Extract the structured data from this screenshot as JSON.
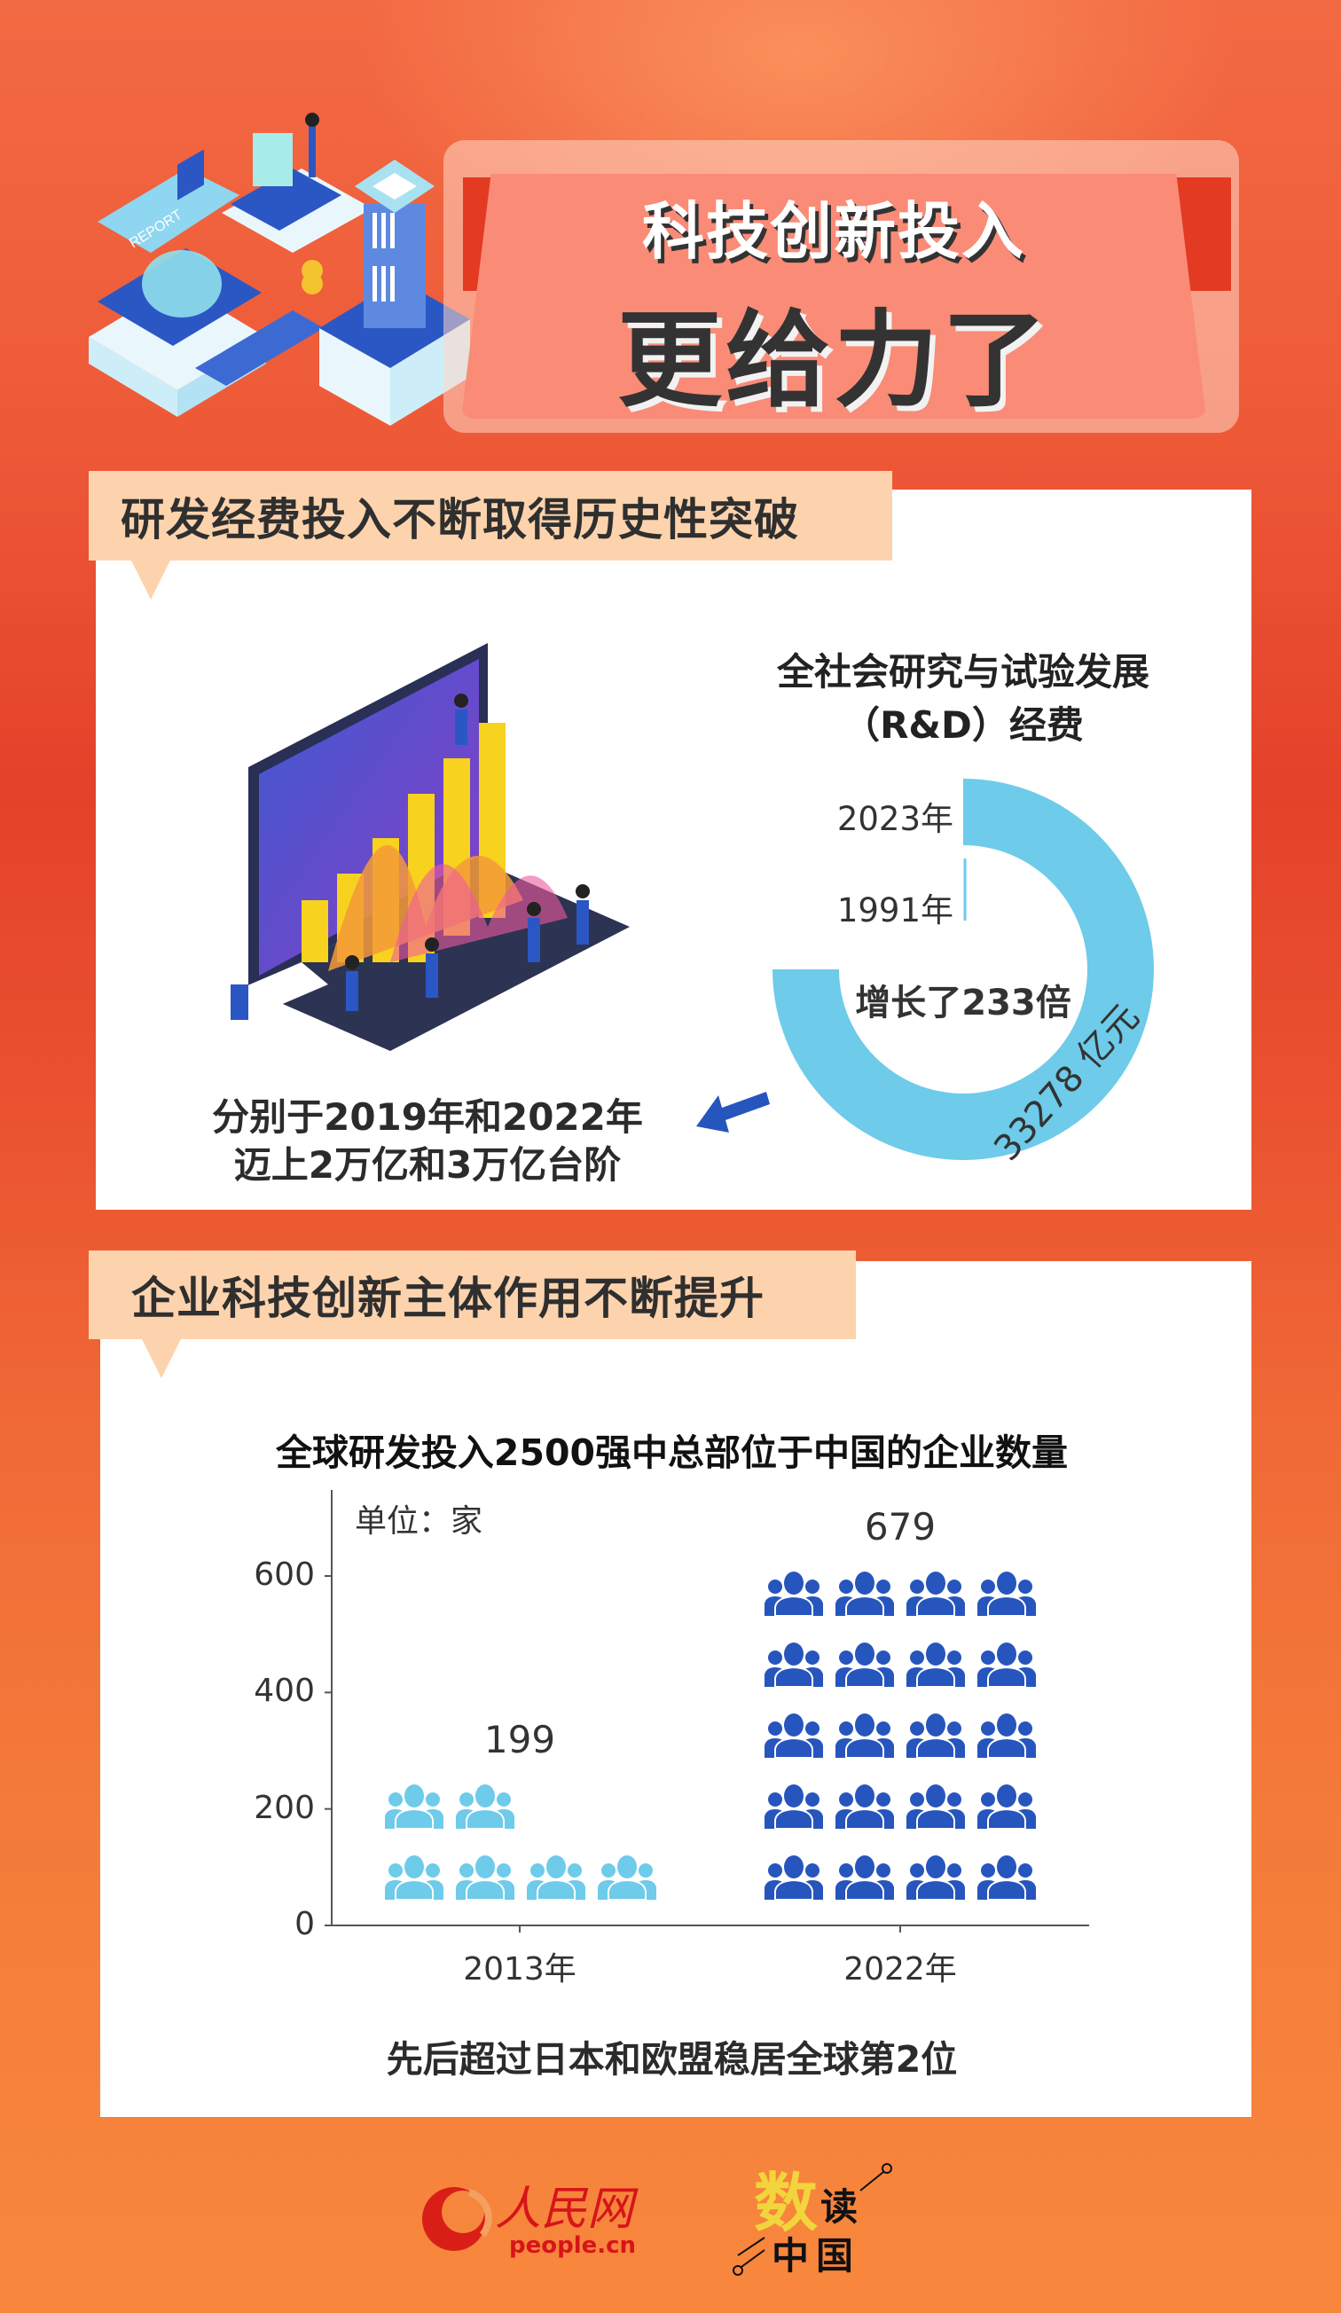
{
  "header": {
    "title_line1": "科技创新投入",
    "title_line2": "更给力了",
    "illustration_label": "REPORT"
  },
  "section1": {
    "heading": "研发经费投入不断取得历史性突破",
    "caption_line1": "分别于2019年和2022年",
    "caption_line2": "迈上2万亿和3万亿台阶",
    "arrow_icon": "arrow-left-down-icon"
  },
  "section2": {
    "heading": "企业科技创新主体作用不断提升",
    "footnote": "先后超过日本和欧盟稳居全球第2位"
  },
  "chart_data": [
    {
      "type": "pie",
      "variant": "donut",
      "title_line1": "全社会研究与试验发展",
      "title_line2": "（R&D）经费",
      "categories": [
        "2023年",
        "1991年"
      ],
      "values_label": "33278 亿元",
      "values": [
        33278,
        null
      ],
      "annotation": "增长了233倍",
      "color": "#6ecbea"
    },
    {
      "type": "bar",
      "variant": "pictogram",
      "title": "全球研发投入2500强中总部位于中国的企业数量",
      "unit_label": "单位：家",
      "categories": [
        "2013年",
        "2022年"
      ],
      "values": [
        199,
        679
      ],
      "value_labels": [
        "199",
        "679"
      ],
      "yticks": [
        "0",
        "200",
        "400",
        "600"
      ],
      "ylim": [
        0,
        700
      ],
      "grid": false,
      "colors": [
        "#6ecbea",
        "#2755be"
      ],
      "icon": "people-group-icon"
    }
  ],
  "footer": {
    "logo1_text": "人民网",
    "logo1_domain": "people.cn",
    "logo2_text": [
      "数",
      "读",
      "中",
      "国"
    ]
  }
}
